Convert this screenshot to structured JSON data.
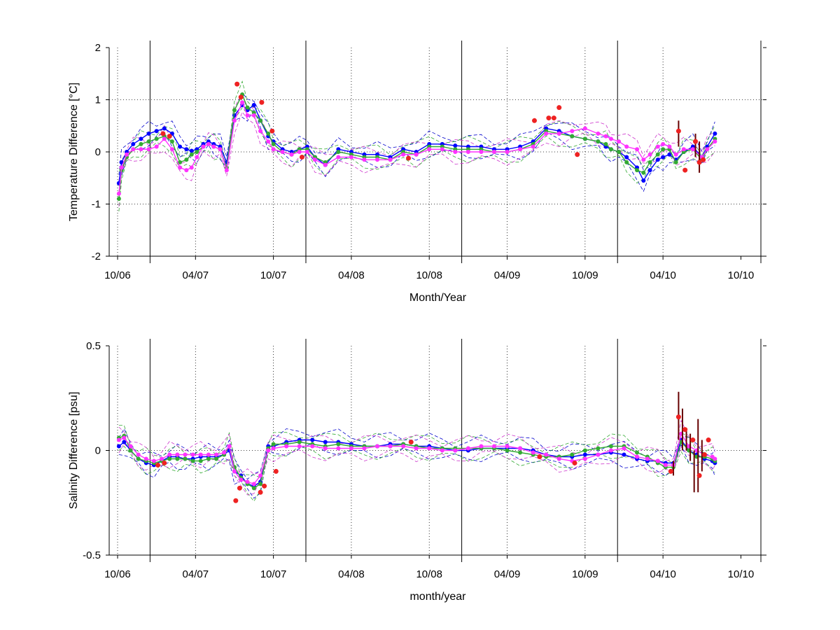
{
  "chart_data": [
    {
      "type": "line",
      "ylabel": "Temperature Difference [°C]",
      "xlabel": "Month/Year",
      "ylim": [
        -2,
        2
      ],
      "yticks": [
        "2",
        "1",
        "0",
        "-1",
        "-2"
      ],
      "x_tick_labels": [
        "10/06",
        "04/07",
        "10/07",
        "04/08",
        "10/08",
        "04/09",
        "10/09",
        "04/10",
        "10/10"
      ],
      "grid": true,
      "series": [
        {
          "color": "#0000ff",
          "x": [
            0.1,
            0.3,
            0.7,
            1.2,
            1.8,
            2.4,
            3,
            3.6,
            4.2,
            4.8,
            5.3,
            5.7,
            6.1,
            6.6,
            7,
            7.4,
            7.9,
            8.4,
            9,
            9.6,
            10,
            10.5,
            11,
            11.6,
            12,
            12.7,
            13.4,
            14,
            14.6,
            15.2,
            16,
            17,
            18,
            19,
            20,
            21,
            22,
            23,
            24,
            25,
            26,
            27,
            28,
            29,
            30,
            31,
            32,
            33,
            34,
            35,
            36,
            37,
            37.6,
            38,
            38.6,
            39.2,
            40,
            40.5,
            41,
            41.6,
            42,
            42.5,
            43,
            43.6,
            44.3,
            45,
            45.4,
            46
          ],
          "y": [
            -0.6,
            -0.2,
            0,
            0.15,
            0.25,
            0.35,
            0.4,
            0.45,
            0.35,
            0.1,
            0.05,
            0.02,
            0.05,
            0.15,
            0.2,
            0.15,
            0.1,
            -0.2,
            0.7,
            0.9,
            0.8,
            0.9,
            0.6,
            0.3,
            0.2,
            0.05,
            0,
            0.05,
            0.1,
            -0.1,
            -0.25,
            0.05,
            0,
            -0.05,
            -0.05,
            -0.1,
            0.05,
            0,
            0.15,
            0.15,
            0.12,
            0.1,
            0.1,
            0.05,
            0.05,
            0.1,
            0.2,
            0.45,
            0.4,
            0.3,
            0.25,
            0.2,
            0.1,
            0.05,
            0,
            -0.1,
            -0.3,
            -0.55,
            -0.35,
            -0.15,
            -0.1,
            -0.05,
            -0.15,
            0,
            0.1,
            -0.1,
            0.1,
            0.35
          ]
        },
        {
          "color": "#33aa33",
          "x": [
            0.1,
            0.3,
            0.7,
            1.2,
            1.8,
            2.4,
            3,
            3.6,
            4.2,
            4.8,
            5.3,
            5.7,
            6.1,
            6.6,
            7,
            7.4,
            7.9,
            8.4,
            9,
            9.6,
            10,
            10.5,
            11,
            11.6,
            12,
            12.7,
            13.4,
            14,
            14.6,
            15.2,
            16,
            17,
            18,
            19,
            20,
            21,
            22,
            23,
            24,
            25,
            26,
            27,
            28,
            29,
            30,
            31,
            32,
            33,
            34,
            35,
            36,
            37,
            37.6,
            38,
            38.6,
            39.2,
            40,
            40.5,
            41,
            41.6,
            42,
            42.5,
            43,
            43.6,
            44.3,
            45,
            45.4,
            46
          ],
          "y": [
            -0.9,
            -0.35,
            -0.1,
            0.05,
            0.15,
            0.2,
            0.25,
            0.3,
            0.2,
            -0.2,
            -0.15,
            -0.05,
            0,
            0.1,
            0.15,
            0.1,
            0.05,
            -0.3,
            0.8,
            1.1,
            0.85,
            0.75,
            0.6,
            0.35,
            0.15,
            0,
            -0.05,
            0.05,
            0.05,
            -0.1,
            -0.2,
            0,
            -0.05,
            -0.1,
            -0.1,
            -0.15,
            0,
            -0.05,
            0.1,
            0.1,
            0.05,
            0.05,
            0.05,
            0,
            0,
            0.05,
            0.15,
            0.4,
            0.35,
            0.3,
            0.25,
            0.2,
            0.15,
            0.05,
            0,
            -0.2,
            -0.35,
            -0.4,
            -0.2,
            -0.05,
            0.05,
            0.05,
            -0.2,
            0,
            0.05,
            -0.15,
            0.05,
            0.25
          ]
        },
        {
          "color": "#ff33ff",
          "x": [
            0.1,
            0.3,
            0.7,
            1.2,
            1.8,
            2.4,
            3,
            3.6,
            4.2,
            4.8,
            5.3,
            5.7,
            6.1,
            6.6,
            7,
            7.4,
            7.9,
            8.4,
            9,
            9.6,
            10,
            10.5,
            11,
            11.6,
            12,
            12.7,
            13.4,
            14,
            14.6,
            15.2,
            16,
            17,
            18,
            19,
            20,
            21,
            22,
            23,
            24,
            25,
            26,
            27,
            28,
            29,
            30,
            31,
            32,
            33,
            34,
            35,
            36,
            37,
            37.6,
            38,
            38.6,
            39.2,
            40,
            40.5,
            41,
            41.6,
            42,
            42.5,
            43,
            43.6,
            44.3,
            45,
            45.4,
            46
          ],
          "y": [
            -0.8,
            -0.3,
            -0.05,
            0.05,
            0.05,
            0.05,
            0.1,
            0.25,
            0.05,
            -0.3,
            -0.35,
            -0.3,
            -0.1,
            0.1,
            0.15,
            0.1,
            0.05,
            -0.35,
            0.6,
            0.95,
            0.7,
            0.7,
            0.4,
            0.2,
            0.05,
            0,
            -0.05,
            0,
            0,
            -0.15,
            -0.25,
            -0.1,
            -0.1,
            -0.15,
            -0.15,
            -0.15,
            -0.05,
            -0.05,
            0.05,
            0.05,
            0,
            0,
            0,
            0,
            0,
            0.05,
            0.1,
            0.35,
            0.35,
            0.4,
            0.45,
            0.35,
            0.3,
            0.25,
            0.2,
            0.1,
            0.05,
            -0.15,
            -0.05,
            0.1,
            0.15,
            0.1,
            -0.05,
            0.05,
            0.05,
            -0.1,
            0.05,
            0.2
          ]
        }
      ],
      "float_points": {
        "color": "#ee2222",
        "x": [
          3.5,
          4,
          9.2,
          9.5,
          11.1,
          11.9,
          14.2,
          22.4,
          32.1,
          33.2,
          33.6,
          34,
          35.4,
          43.2,
          43.7,
          44.5,
          44.8,
          45.1
        ],
        "y": [
          0.35,
          0.3,
          1.3,
          1.05,
          0.95,
          0.4,
          -0.1,
          -0.12,
          0.6,
          0.65,
          0.65,
          0.85,
          -0.05,
          0.4,
          -0.35,
          0.2,
          -0.2,
          -0.15
        ]
      },
      "error_bars": {
        "color": "#660000",
        "x": [
          43.2,
          44.5,
          44.8
        ],
        "low": [
          0.1,
          -0.1,
          -0.4
        ],
        "high": [
          0.6,
          0.35,
          0.2
        ]
      },
      "dashed_lines": [
        {
          "color": "#0000cc"
        },
        {
          "color": "#33aa33"
        },
        {
          "color": "#cc33cc"
        }
      ]
    },
    {
      "type": "line",
      "ylabel": "Salinity Difference [psu]",
      "xlabel": "month/year",
      "ylim": [
        -0.5,
        0.5
      ],
      "yticks": [
        "0.5",
        "0",
        "-0.5"
      ],
      "x_tick_labels": [
        "10/06",
        "04/07",
        "10/07",
        "04/08",
        "10/08",
        "04/09",
        "10/09",
        "04/10",
        "10/10"
      ],
      "grid": true,
      "series": [
        {
          "color": "#0000ff",
          "x": [
            0.1,
            0.5,
            1,
            1.6,
            2.2,
            2.8,
            3.4,
            4,
            4.6,
            5.2,
            5.8,
            6.4,
            7,
            7.6,
            8.2,
            8.6,
            9,
            9.5,
            10,
            10.5,
            11,
            11.6,
            12,
            13,
            14,
            15,
            16,
            17,
            18,
            19,
            20,
            21,
            22,
            23,
            24,
            25,
            26,
            27,
            28,
            29,
            30,
            31,
            32,
            33,
            34,
            35,
            36,
            37,
            38,
            39,
            40,
            40.8,
            41.6,
            42.2,
            42.8,
            43.4,
            44,
            44.6,
            45.2,
            45.8,
            46
          ],
          "y": [
            0.02,
            0.04,
            0.0,
            -0.04,
            -0.06,
            -0.07,
            -0.05,
            -0.03,
            -0.03,
            -0.04,
            -0.04,
            -0.03,
            -0.03,
            -0.03,
            -0.02,
            0.0,
            -0.1,
            -0.12,
            -0.16,
            -0.17,
            -0.15,
            0.02,
            0.02,
            0.04,
            0.05,
            0.05,
            0.04,
            0.04,
            0.03,
            0.02,
            0.02,
            0.03,
            0.03,
            0.02,
            0.02,
            0.01,
            0.0,
            0.0,
            0.01,
            0.01,
            0.01,
            0.01,
            0.0,
            -0.02,
            -0.03,
            -0.03,
            -0.02,
            -0.02,
            -0.01,
            -0.02,
            -0.04,
            -0.05,
            -0.05,
            -0.06,
            -0.06,
            0.05,
            0.0,
            -0.02,
            -0.04,
            -0.05,
            -0.06
          ]
        },
        {
          "color": "#33aa33",
          "x": [
            0.1,
            0.5,
            1,
            1.6,
            2.2,
            2.8,
            3.4,
            4,
            4.6,
            5.2,
            5.8,
            6.4,
            7,
            7.6,
            8.2,
            8.6,
            9,
            9.5,
            10,
            10.5,
            11,
            11.6,
            12,
            13,
            14,
            15,
            16,
            17,
            18,
            19,
            20,
            21,
            22,
            23,
            24,
            25,
            26,
            27,
            28,
            29,
            30,
            31,
            32,
            33,
            34,
            35,
            36,
            37,
            38,
            39,
            40,
            40.8,
            41.6,
            42.2,
            42.8,
            43.4,
            44,
            44.6,
            45.2,
            45.8,
            46
          ],
          "y": [
            0.06,
            0.07,
            0.0,
            -0.04,
            -0.05,
            -0.06,
            -0.05,
            -0.04,
            -0.04,
            -0.04,
            -0.05,
            -0.05,
            -0.04,
            -0.04,
            -0.02,
            0.02,
            -0.08,
            -0.13,
            -0.16,
            -0.18,
            -0.16,
            0.01,
            0.03,
            0.03,
            0.04,
            0.03,
            0.02,
            0.03,
            0.02,
            0.02,
            0.02,
            0.02,
            0.03,
            0.02,
            0.01,
            0.01,
            0.01,
            0.01,
            0.01,
            0.01,
            0.0,
            -0.01,
            -0.02,
            -0.03,
            -0.03,
            -0.02,
            0.0,
            0.01,
            0.02,
            0.02,
            -0.01,
            -0.03,
            -0.06,
            -0.08,
            -0.08,
            0.04,
            0.0,
            -0.03,
            -0.03,
            -0.04,
            -0.05
          ]
        },
        {
          "color": "#ff33ff",
          "x": [
            0.1,
            0.5,
            1,
            1.6,
            2.2,
            2.8,
            3.4,
            4,
            4.6,
            5.2,
            5.8,
            6.4,
            7,
            7.6,
            8.2,
            8.6,
            9,
            9.5,
            10,
            10.5,
            11,
            11.6,
            12,
            13,
            14,
            15,
            16,
            17,
            18,
            19,
            20,
            21,
            22,
            23,
            24,
            25,
            26,
            27,
            28,
            29,
            30,
            31,
            32,
            33,
            34,
            35,
            36,
            37,
            38,
            39,
            40,
            40.8,
            41.6,
            42.2,
            42.8,
            43.4,
            44,
            44.6,
            45.2,
            45.8,
            46
          ],
          "y": [
            0.05,
            0.06,
            0.02,
            -0.02,
            -0.04,
            -0.05,
            -0.04,
            -0.02,
            -0.02,
            -0.02,
            -0.02,
            -0.02,
            -0.02,
            -0.02,
            -0.01,
            0.02,
            -0.1,
            -0.14,
            -0.15,
            -0.16,
            -0.12,
            0.0,
            0.01,
            0.02,
            0.02,
            0.02,
            0.01,
            0.01,
            0.01,
            0.01,
            0.02,
            0.02,
            0.02,
            0.01,
            0.01,
            0.0,
            0.0,
            0.01,
            0.02,
            0.02,
            0.02,
            0.01,
            -0.01,
            -0.02,
            -0.04,
            -0.05,
            -0.04,
            -0.02,
            0.0,
            0.01,
            -0.03,
            -0.04,
            -0.05,
            -0.07,
            -0.07,
            0.08,
            0.02,
            0.0,
            -0.02,
            -0.03,
            -0.04
          ]
        }
      ],
      "float_points": {
        "color": "#ee2222",
        "x": [
          3.1,
          3.6,
          9.1,
          9.4,
          11,
          11.3,
          12.2,
          22.6,
          32.5,
          35.2,
          42.6,
          43.2,
          43.7,
          44.3,
          44.8,
          45.2,
          45.5
        ],
        "y": [
          -0.07,
          -0.06,
          -0.24,
          -0.18,
          -0.2,
          -0.17,
          -0.1,
          0.04,
          -0.03,
          -0.06,
          -0.1,
          0.16,
          0.1,
          0.05,
          -0.12,
          -0.02,
          0.05
        ]
      },
      "error_bars": {
        "color": "#660000",
        "x": [
          42.8,
          43.2,
          43.5,
          43.8,
          44.1,
          44.4,
          44.7,
          45.0
        ],
        "low": [
          -0.12,
          0.05,
          0.0,
          0.0,
          -0.05,
          -0.2,
          -0.2,
          -0.1
        ],
        "high": [
          -0.05,
          0.28,
          0.2,
          0.1,
          0.08,
          0.0,
          0.15,
          0.05
        ]
      },
      "dashed_lines": [
        {
          "color": "#0000cc"
        },
        {
          "color": "#33aa33"
        },
        {
          "color": "#cc33cc"
        }
      ]
    }
  ]
}
